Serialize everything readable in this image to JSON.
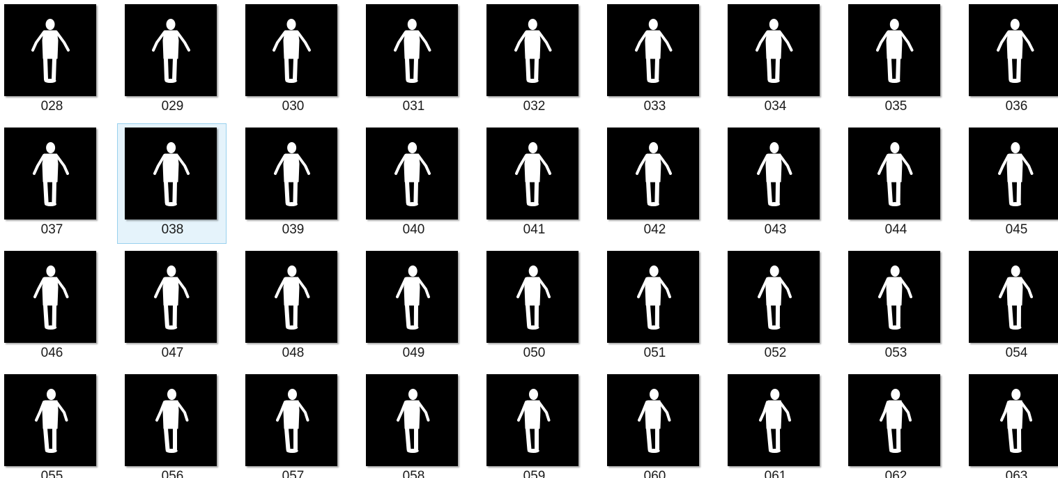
{
  "thumbnail_icon": "person-silhouette-icon",
  "colors": {
    "thumbnail_background": "#000000",
    "silhouette": "#ffffff",
    "selection_fill": "#e5f3fb",
    "selection_border": "#99d1ee"
  },
  "selected_file": "038",
  "files": [
    {
      "name": "028"
    },
    {
      "name": "029"
    },
    {
      "name": "030"
    },
    {
      "name": "031"
    },
    {
      "name": "032"
    },
    {
      "name": "033"
    },
    {
      "name": "034"
    },
    {
      "name": "035"
    },
    {
      "name": "036"
    },
    {
      "name": "037"
    },
    {
      "name": "038"
    },
    {
      "name": "039"
    },
    {
      "name": "040"
    },
    {
      "name": "041"
    },
    {
      "name": "042"
    },
    {
      "name": "043"
    },
    {
      "name": "044"
    },
    {
      "name": "045"
    },
    {
      "name": "046"
    },
    {
      "name": "047"
    },
    {
      "name": "048"
    },
    {
      "name": "049"
    },
    {
      "name": "050"
    },
    {
      "name": "051"
    },
    {
      "name": "052"
    },
    {
      "name": "053"
    },
    {
      "name": "054"
    },
    {
      "name": "055"
    },
    {
      "name": "056"
    },
    {
      "name": "057"
    },
    {
      "name": "058"
    },
    {
      "name": "059"
    },
    {
      "name": "060"
    },
    {
      "name": "061"
    },
    {
      "name": "062"
    },
    {
      "name": "063"
    }
  ]
}
